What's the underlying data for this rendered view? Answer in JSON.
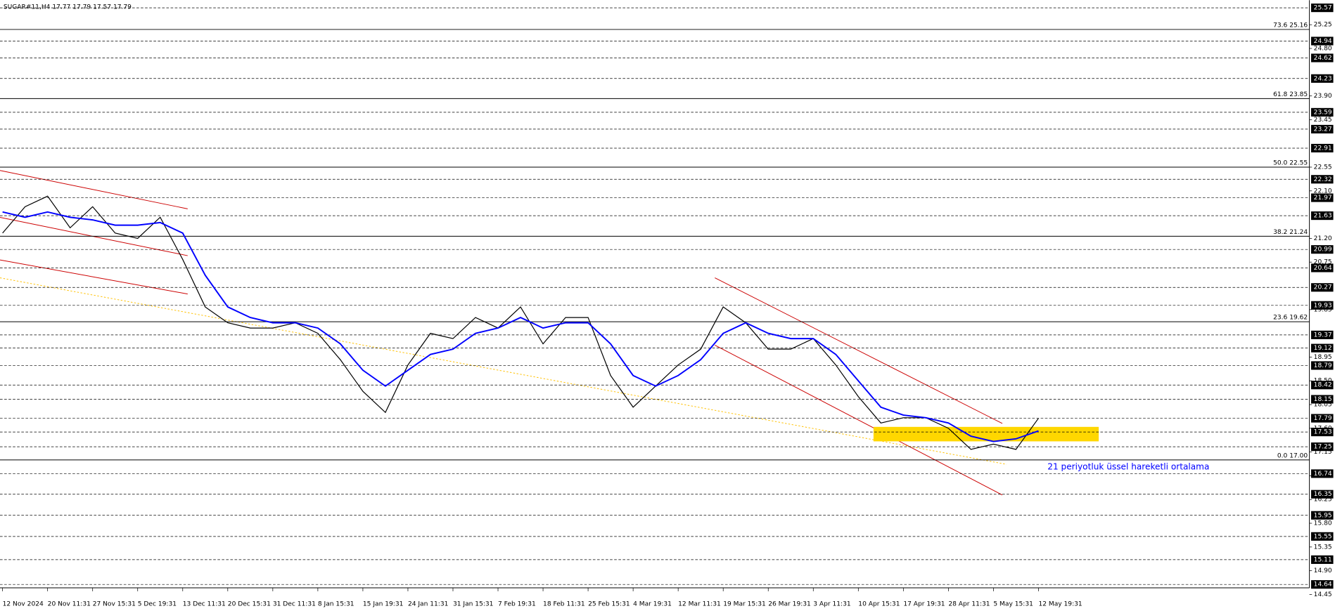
{
  "chart_data": {
    "type": "line",
    "title": "SUGAR#11,H4  17.77 17.79 17.57 17.79",
    "annotation": "21 periyotluk üssel hareketli ortalama",
    "categories": [
      "12 Nov 2024",
      null,
      "20 Nov 11:31",
      null,
      "27 Nov 15:31",
      null,
      "5 Dec 19:31",
      null,
      "13 Dec 11:31",
      null,
      "20 Dec 15:31",
      null,
      "31 Dec 11:31",
      null,
      "8 Jan 15:31",
      null,
      "15 Jan 19:31",
      null,
      "24 Jan 11:31",
      null,
      "31 Jan 15:31",
      null,
      "7 Feb 19:31",
      null,
      "18 Feb 11:31",
      null,
      "25 Feb 15:31",
      null,
      "4 Mar 19:31",
      null,
      "12 Mar 11:31",
      null,
      "19 Mar 15:31",
      null,
      "26 Mar 19:31",
      null,
      "3 Apr 11:31",
      null,
      "10 Apr 15:31",
      null,
      "17 Apr 19:31",
      null,
      "28 Apr 11:31",
      null,
      "5 May 15:31",
      null,
      "12 May 19:31"
    ],
    "series": [
      {
        "name": "SUGAR#11",
        "color": "#000000",
        "values": [
          21.3,
          21.8,
          22.0,
          21.4,
          21.8,
          21.3,
          21.2,
          21.6,
          20.8,
          19.9,
          19.6,
          19.5,
          19.5,
          19.6,
          19.4,
          18.9,
          18.3,
          17.9,
          18.8,
          19.4,
          19.3,
          19.7,
          19.5,
          19.9,
          19.2,
          19.7,
          19.7,
          18.6,
          18.0,
          18.4,
          18.8,
          19.1,
          19.9,
          19.6,
          19.1,
          19.1,
          19.3,
          18.8,
          18.2,
          17.7,
          17.8,
          17.8,
          17.6,
          17.2,
          17.3,
          17.2,
          17.79
        ]
      },
      {
        "name": "EMA 21",
        "color": "#0000ff",
        "values": [
          21.7,
          21.6,
          21.7,
          21.6,
          21.55,
          21.45,
          21.45,
          21.5,
          21.3,
          20.5,
          19.9,
          19.7,
          19.6,
          19.6,
          19.5,
          19.2,
          18.7,
          18.4,
          18.7,
          19.0,
          19.1,
          19.4,
          19.5,
          19.7,
          19.5,
          19.6,
          19.6,
          19.2,
          18.6,
          18.4,
          18.6,
          18.9,
          19.4,
          19.6,
          19.4,
          19.3,
          19.3,
          19.0,
          18.5,
          18.0,
          17.85,
          17.8,
          17.7,
          17.45,
          17.35,
          17.4,
          17.55
        ]
      }
    ],
    "ylim": [
      14.45,
      25.7
    ],
    "yticks": [
      25.25,
      {
        "value": 24.8,
        "label": "24.80"
      },
      {
        "value": 23.9,
        "label": "23.90"
      },
      23.45,
      22.55,
      {
        "value": 22.1,
        "label": "22.10"
      },
      {
        "value": 21.2,
        "label": "21.20"
      },
      20.75,
      19.85,
      18.95,
      {
        "value": 18.5,
        "label": "18.50"
      },
      18.05,
      {
        "value": 17.6,
        "label": "17.60"
      },
      17.15,
      {
        "value": 16.7,
        "label": "16.70"
      },
      16.25,
      {
        "value": 15.8,
        "label": "15.80"
      },
      15.35,
      {
        "value": 14.9,
        "label": "14.90"
      },
      14.45
    ],
    "price_levels": [
      25.57,
      24.94,
      24.62,
      24.23,
      23.59,
      23.27,
      22.91,
      22.32,
      21.97,
      21.63,
      20.99,
      20.64,
      20.27,
      19.93,
      19.37,
      19.12,
      18.79,
      18.42,
      18.15,
      17.79,
      17.53,
      17.25,
      16.74,
      16.35,
      15.95,
      15.55,
      15.11,
      14.64
    ],
    "fib_levels": [
      {
        "value": 25.16,
        "label": "73.6 25.16"
      },
      {
        "value": 23.85,
        "label": "61.8 23.85"
      },
      {
        "value": 22.55,
        "label": "50.0 22.55"
      },
      {
        "value": 21.24,
        "label": "38.2 21.24"
      },
      {
        "value": 19.62,
        "label": "23.6 19.62"
      },
      {
        "value": 17,
        "label": "0.0 17.00"
      }
    ]
  }
}
